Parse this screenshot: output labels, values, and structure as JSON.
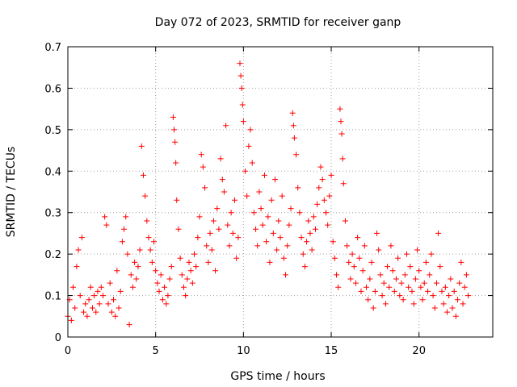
{
  "chart_data": {
    "type": "scatter",
    "title": "Day 072 of 2023, SRMTID for receiver ganp",
    "xlabel": "GPS time / hours",
    "ylabel": "SRMTID / TECUs",
    "xlim": [
      0,
      24.2
    ],
    "ylim": [
      0,
      0.7
    ],
    "xticks": [
      0,
      5,
      10,
      15,
      20
    ],
    "xtick_labels": [
      "0",
      "5",
      "10",
      "15",
      "20"
    ],
    "yticks": [
      0,
      0.1,
      0.2,
      0.3,
      0.4,
      0.5,
      0.6,
      0.7
    ],
    "ytick_labels": [
      "0",
      "0.1",
      "0.2",
      "0.3",
      "0.4",
      "0.5",
      "0.6",
      "0.7"
    ],
    "grid": true,
    "marker": "+",
    "color": "#ff0000",
    "series": [
      {
        "name": "SRMTID",
        "points": [
          [
            0.0,
            0.05
          ],
          [
            0.1,
            0.09
          ],
          [
            0.2,
            0.04
          ],
          [
            0.3,
            0.12
          ],
          [
            0.4,
            0.07
          ],
          [
            0.5,
            0.17
          ],
          [
            0.6,
            0.21
          ],
          [
            0.7,
            0.1
          ],
          [
            0.8,
            0.24
          ],
          [
            0.9,
            0.06
          ],
          [
            1.0,
            0.08
          ],
          [
            1.1,
            0.05
          ],
          [
            1.2,
            0.09
          ],
          [
            1.3,
            0.12
          ],
          [
            1.4,
            0.07
          ],
          [
            1.5,
            0.1
          ],
          [
            1.6,
            0.06
          ],
          [
            1.7,
            0.11
          ],
          [
            1.8,
            0.08
          ],
          [
            1.9,
            0.12
          ],
          [
            2.0,
            0.1
          ],
          [
            2.1,
            0.29
          ],
          [
            2.2,
            0.27
          ],
          [
            2.3,
            0.08
          ],
          [
            2.4,
            0.13
          ],
          [
            2.5,
            0.06
          ],
          [
            2.6,
            0.09
          ],
          [
            2.7,
            0.05
          ],
          [
            2.8,
            0.16
          ],
          [
            2.9,
            0.07
          ],
          [
            3.0,
            0.11
          ],
          [
            3.1,
            0.23
          ],
          [
            3.2,
            0.26
          ],
          [
            3.3,
            0.29
          ],
          [
            3.4,
            0.2
          ],
          [
            3.5,
            0.03
          ],
          [
            3.6,
            0.15
          ],
          [
            3.7,
            0.12
          ],
          [
            3.8,
            0.18
          ],
          [
            3.9,
            0.14
          ],
          [
            4.0,
            0.17
          ],
          [
            4.1,
            0.21
          ],
          [
            4.2,
            0.46
          ],
          [
            4.3,
            0.39
          ],
          [
            4.4,
            0.34
          ],
          [
            4.5,
            0.28
          ],
          [
            4.6,
            0.24
          ],
          [
            4.7,
            0.21
          ],
          [
            4.8,
            0.18
          ],
          [
            4.9,
            0.23
          ],
          [
            5.0,
            0.16
          ],
          [
            5.1,
            0.13
          ],
          [
            5.2,
            0.11
          ],
          [
            5.3,
            0.15
          ],
          [
            5.4,
            0.09
          ],
          [
            5.5,
            0.12
          ],
          [
            5.6,
            0.08
          ],
          [
            5.7,
            0.1
          ],
          [
            5.8,
            0.14
          ],
          [
            5.9,
            0.17
          ],
          [
            6.0,
            0.53
          ],
          [
            6.05,
            0.5
          ],
          [
            6.1,
            0.47
          ],
          [
            6.15,
            0.42
          ],
          [
            6.2,
            0.33
          ],
          [
            6.3,
            0.26
          ],
          [
            6.4,
            0.19
          ],
          [
            6.5,
            0.15
          ],
          [
            6.6,
            0.12
          ],
          [
            6.7,
            0.1
          ],
          [
            6.8,
            0.14
          ],
          [
            6.9,
            0.18
          ],
          [
            7.0,
            0.16
          ],
          [
            7.1,
            0.13
          ],
          [
            7.2,
            0.2
          ],
          [
            7.3,
            0.17
          ],
          [
            7.4,
            0.24
          ],
          [
            7.5,
            0.29
          ],
          [
            7.6,
            0.44
          ],
          [
            7.7,
            0.41
          ],
          [
            7.8,
            0.36
          ],
          [
            7.9,
            0.22
          ],
          [
            8.0,
            0.18
          ],
          [
            8.1,
            0.25
          ],
          [
            8.2,
            0.21
          ],
          [
            8.3,
            0.28
          ],
          [
            8.4,
            0.16
          ],
          [
            8.5,
            0.31
          ],
          [
            8.6,
            0.26
          ],
          [
            8.7,
            0.43
          ],
          [
            8.8,
            0.38
          ],
          [
            8.9,
            0.35
          ],
          [
            9.0,
            0.51
          ],
          [
            9.1,
            0.27
          ],
          [
            9.2,
            0.22
          ],
          [
            9.3,
            0.3
          ],
          [
            9.4,
            0.25
          ],
          [
            9.5,
            0.33
          ],
          [
            9.6,
            0.19
          ],
          [
            9.7,
            0.24
          ],
          [
            9.8,
            0.66
          ],
          [
            9.85,
            0.63
          ],
          [
            9.9,
            0.6
          ],
          [
            9.95,
            0.56
          ],
          [
            10.0,
            0.52
          ],
          [
            10.1,
            0.4
          ],
          [
            10.2,
            0.34
          ],
          [
            10.3,
            0.46
          ],
          [
            10.4,
            0.5
          ],
          [
            10.5,
            0.42
          ],
          [
            10.6,
            0.3
          ],
          [
            10.7,
            0.26
          ],
          [
            10.8,
            0.22
          ],
          [
            10.9,
            0.35
          ],
          [
            11.0,
            0.31
          ],
          [
            11.1,
            0.27
          ],
          [
            11.2,
            0.39
          ],
          [
            11.3,
            0.23
          ],
          [
            11.4,
            0.29
          ],
          [
            11.5,
            0.18
          ],
          [
            11.6,
            0.33
          ],
          [
            11.7,
            0.25
          ],
          [
            11.8,
            0.38
          ],
          [
            11.9,
            0.21
          ],
          [
            12.0,
            0.28
          ],
          [
            12.1,
            0.24
          ],
          [
            12.2,
            0.34
          ],
          [
            12.3,
            0.19
          ],
          [
            12.4,
            0.15
          ],
          [
            12.5,
            0.22
          ],
          [
            12.6,
            0.27
          ],
          [
            12.7,
            0.31
          ],
          [
            12.8,
            0.54
          ],
          [
            12.85,
            0.51
          ],
          [
            12.9,
            0.48
          ],
          [
            13.0,
            0.44
          ],
          [
            13.1,
            0.36
          ],
          [
            13.2,
            0.3
          ],
          [
            13.3,
            0.24
          ],
          [
            13.4,
            0.2
          ],
          [
            13.5,
            0.17
          ],
          [
            13.6,
            0.23
          ],
          [
            13.7,
            0.28
          ],
          [
            13.8,
            0.25
          ],
          [
            13.9,
            0.21
          ],
          [
            14.0,
            0.29
          ],
          [
            14.1,
            0.26
          ],
          [
            14.2,
            0.32
          ],
          [
            14.3,
            0.36
          ],
          [
            14.4,
            0.41
          ],
          [
            14.5,
            0.38
          ],
          [
            14.6,
            0.33
          ],
          [
            14.7,
            0.3
          ],
          [
            14.8,
            0.27
          ],
          [
            14.9,
            0.34
          ],
          [
            15.0,
            0.39
          ],
          [
            15.1,
            0.23
          ],
          [
            15.2,
            0.19
          ],
          [
            15.3,
            0.15
          ],
          [
            15.4,
            0.12
          ],
          [
            15.5,
            0.55
          ],
          [
            15.55,
            0.52
          ],
          [
            15.6,
            0.49
          ],
          [
            15.65,
            0.43
          ],
          [
            15.7,
            0.37
          ],
          [
            15.8,
            0.28
          ],
          [
            15.9,
            0.22
          ],
          [
            16.0,
            0.18
          ],
          [
            16.1,
            0.14
          ],
          [
            16.2,
            0.2
          ],
          [
            16.3,
            0.17
          ],
          [
            16.4,
            0.13
          ],
          [
            16.5,
            0.24
          ],
          [
            16.6,
            0.19
          ],
          [
            16.7,
            0.11
          ],
          [
            16.8,
            0.16
          ],
          [
            16.9,
            0.22
          ],
          [
            17.0,
            0.12
          ],
          [
            17.1,
            0.09
          ],
          [
            17.2,
            0.14
          ],
          [
            17.3,
            0.18
          ],
          [
            17.4,
            0.07
          ],
          [
            17.5,
            0.11
          ],
          [
            17.6,
            0.25
          ],
          [
            17.7,
            0.21
          ],
          [
            17.8,
            0.15
          ],
          [
            17.9,
            0.1
          ],
          [
            18.0,
            0.13
          ],
          [
            18.1,
            0.08
          ],
          [
            18.2,
            0.17
          ],
          [
            18.3,
            0.12
          ],
          [
            18.4,
            0.22
          ],
          [
            18.5,
            0.16
          ],
          [
            18.6,
            0.11
          ],
          [
            18.7,
            0.14
          ],
          [
            18.8,
            0.19
          ],
          [
            18.9,
            0.1
          ],
          [
            19.0,
            0.13
          ],
          [
            19.1,
            0.09
          ],
          [
            19.2,
            0.15
          ],
          [
            19.3,
            0.2
          ],
          [
            19.4,
            0.12
          ],
          [
            19.5,
            0.17
          ],
          [
            19.6,
            0.11
          ],
          [
            19.7,
            0.08
          ],
          [
            19.8,
            0.14
          ],
          [
            19.9,
            0.21
          ],
          [
            20.0,
            0.16
          ],
          [
            20.1,
            0.12
          ],
          [
            20.2,
            0.09
          ],
          [
            20.3,
            0.13
          ],
          [
            20.4,
            0.18
          ],
          [
            20.5,
            0.11
          ],
          [
            20.6,
            0.15
          ],
          [
            20.7,
            0.2
          ],
          [
            20.8,
            0.1
          ],
          [
            20.9,
            0.07
          ],
          [
            21.0,
            0.13
          ],
          [
            21.1,
            0.25
          ],
          [
            21.2,
            0.17
          ],
          [
            21.3,
            0.11
          ],
          [
            21.4,
            0.08
          ],
          [
            21.5,
            0.12
          ],
          [
            21.6,
            0.06
          ],
          [
            21.7,
            0.1
          ],
          [
            21.8,
            0.14
          ],
          [
            21.9,
            0.07
          ],
          [
            22.0,
            0.11
          ],
          [
            22.1,
            0.05
          ],
          [
            22.2,
            0.09
          ],
          [
            22.3,
            0.13
          ],
          [
            22.4,
            0.18
          ],
          [
            22.5,
            0.08
          ],
          [
            22.6,
            0.12
          ],
          [
            22.7,
            0.15
          ],
          [
            22.8,
            0.1
          ]
        ]
      }
    ]
  }
}
